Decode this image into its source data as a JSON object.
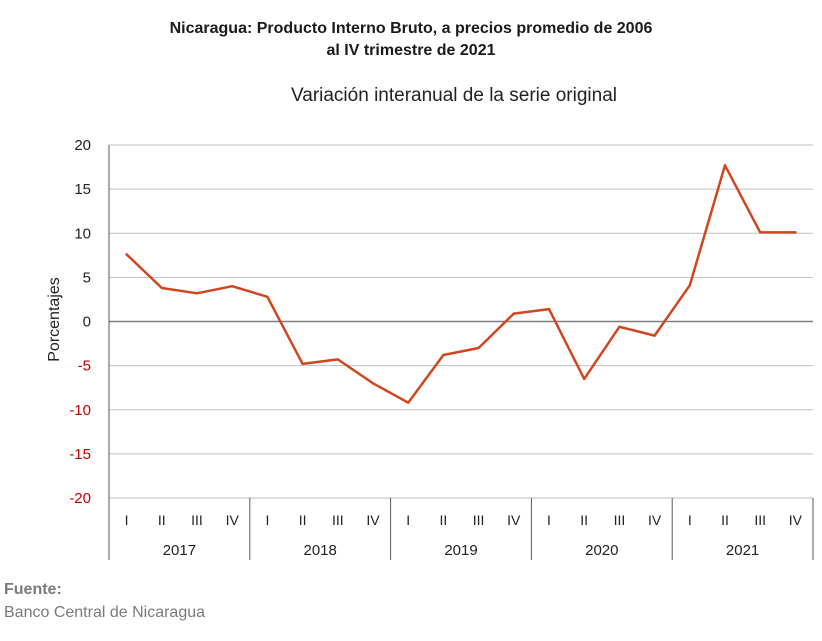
{
  "title_line1": "Nicaragua: Producto Interno Bruto, a precios promedio de 2006",
  "title_line2": "al IV trimestre de 2021",
  "subtitle": "Variación interanual de la serie original",
  "source_label": "Fuente:",
  "source_text": "Banco Central de Nicaragua",
  "colors": {
    "line": "#d0461e",
    "negative_tick": "#c00000",
    "grid": "#bfbfbf",
    "zero": "#7f7f7f"
  },
  "chart_data": {
    "type": "line",
    "ylabel": "Porcentajes",
    "ylim": [
      -20,
      20
    ],
    "yticks": [
      20,
      15,
      10,
      5,
      0,
      -5,
      -10,
      -15,
      -20
    ],
    "grid": true,
    "quarters": [
      "I",
      "II",
      "III",
      "IV"
    ],
    "years": [
      "2017",
      "2018",
      "2019",
      "2020",
      "2021"
    ],
    "series": [
      {
        "values": [
          7.6,
          3.8,
          3.2,
          4.0,
          2.8,
          -4.8,
          -4.3,
          -7.0,
          -9.2,
          -3.8,
          -3.0,
          0.9,
          1.4,
          -6.5,
          -0.6,
          -1.6,
          4.1,
          17.7,
          10.1,
          10.1
        ]
      }
    ]
  }
}
